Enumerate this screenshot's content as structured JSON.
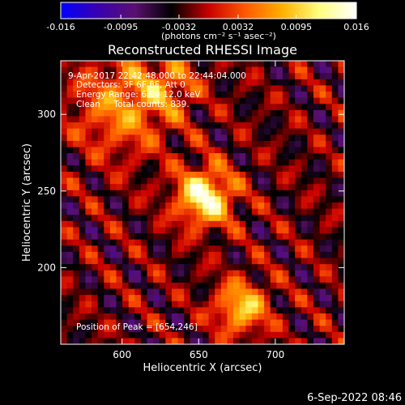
{
  "chart_data": {
    "type": "heatmap",
    "title": "Reconstructed RHESSI Image",
    "xlabel": "Heliocentric X (arcsec)",
    "ylabel": "Heliocentric Y (arcsec)",
    "xlim": [
      560,
      745
    ],
    "ylim": [
      150,
      335
    ],
    "xticks": [
      600,
      650,
      700
    ],
    "yticks": [
      200,
      250,
      300
    ],
    "colorbar": {
      "range": [
        -0.016,
        0.016
      ],
      "ticks": [
        "-0.016",
        "-0.0095",
        "-0.0032",
        "0.0032",
        "0.0095",
        "0.016"
      ],
      "units": "(photons cm⁻² s⁻¹ asec⁻²)",
      "colors": [
        "#0000ff",
        "#3a00b0",
        "#5a1070",
        "#000000",
        "#c80000",
        "#ff5a00",
        "#ffb000",
        "#ffff80",
        "#ffffff"
      ]
    },
    "sources": [
      {
        "x": 654,
        "y": 246,
        "sigma": 13,
        "amp": 0.016
      },
      {
        "x": 678,
        "y": 174,
        "sigma": 12,
        "amp": 0.012
      },
      {
        "x": 600,
        "y": 305,
        "sigma": 22,
        "amp": 0.0085
      },
      {
        "x": 630,
        "y": 320,
        "sigma": 14,
        "amp": 0.006
      }
    ],
    "annotations": [
      " 9-Apr-2017 22:42:48.000 to 22:44:04.000",
      "Detectors: 3F 6F 8F, Att 0",
      "Energy Range: 6.0 - 12.0 keV",
      "Clean     Total counts: 839.",
      "Position of Peak = [654,246]"
    ]
  },
  "footer": {
    "timestamp": "6-Sep-2022 08:46"
  }
}
